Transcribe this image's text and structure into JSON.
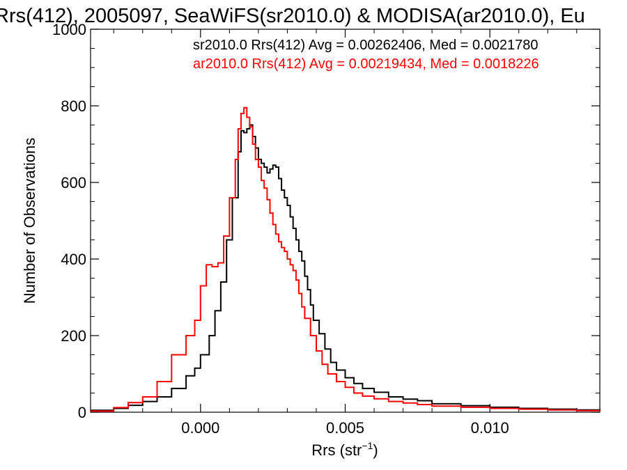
{
  "chart_data": {
    "type": "line",
    "title": "Rrs(412), 2005097, SeaWiFS(sr2010.0) & MODISA(ar2010.0), Eu",
    "xlabel_main": "Rrs (str",
    "xlabel_sup": "−1",
    "xlabel_close": ")",
    "ylabel": "Number of Observations",
    "xlim": [
      -0.0038,
      0.0138
    ],
    "ylim": [
      0,
      1000
    ],
    "grid": false,
    "legend_position": "top-right",
    "x_ticks": [
      {
        "value": 0.0,
        "label": "0.000"
      },
      {
        "value": 0.005,
        "label": "0.005"
      },
      {
        "value": 0.01,
        "label": "0.010"
      }
    ],
    "y_ticks": [
      {
        "value": 0,
        "label": "0"
      },
      {
        "value": 200,
        "label": "200"
      },
      {
        "value": 400,
        "label": "400"
      },
      {
        "value": 600,
        "label": "600"
      },
      {
        "value": 800,
        "label": "800"
      },
      {
        "value": 1000,
        "label": "1000"
      }
    ],
    "series": [
      {
        "legend": "sr2010.0 Rrs(412) Avg = 0.00262406, Med = 0.0021780",
        "color": "#000000",
        "points": [
          [
            -0.0038,
            5
          ],
          [
            -0.003,
            10
          ],
          [
            -0.0025,
            18
          ],
          [
            -0.002,
            28
          ],
          [
            -0.0015,
            40
          ],
          [
            -0.001,
            62
          ],
          [
            -0.0005,
            95
          ],
          [
            -0.0002,
            115
          ],
          [
            0.0,
            150
          ],
          [
            0.0003,
            200
          ],
          [
            0.0005,
            265
          ],
          [
            0.0007,
            340
          ],
          [
            0.0009,
            450
          ],
          [
            0.0011,
            560
          ],
          [
            0.0013,
            680
          ],
          [
            0.0014,
            735
          ],
          [
            0.0015,
            730
          ],
          [
            0.0016,
            740
          ],
          [
            0.0017,
            750
          ],
          [
            0.0018,
            720
          ],
          [
            0.0019,
            690
          ],
          [
            0.002,
            660
          ],
          [
            0.0021,
            650
          ],
          [
            0.0022,
            640
          ],
          [
            0.0023,
            625
          ],
          [
            0.0024,
            635
          ],
          [
            0.0025,
            645
          ],
          [
            0.0026,
            640
          ],
          [
            0.0027,
            610
          ],
          [
            0.0028,
            580
          ],
          [
            0.0029,
            560
          ],
          [
            0.003,
            540
          ],
          [
            0.0031,
            510
          ],
          [
            0.0032,
            480
          ],
          [
            0.0033,
            450
          ],
          [
            0.0034,
            420
          ],
          [
            0.0035,
            395
          ],
          [
            0.0036,
            355
          ],
          [
            0.0037,
            320
          ],
          [
            0.0038,
            280
          ],
          [
            0.0039,
            240
          ],
          [
            0.0041,
            205
          ],
          [
            0.0043,
            165
          ],
          [
            0.0045,
            130
          ],
          [
            0.0047,
            110
          ],
          [
            0.005,
            90
          ],
          [
            0.0053,
            75
          ],
          [
            0.0056,
            62
          ],
          [
            0.006,
            52
          ],
          [
            0.0065,
            40
          ],
          [
            0.007,
            34
          ],
          [
            0.0075,
            30
          ],
          [
            0.008,
            22
          ],
          [
            0.009,
            17
          ],
          [
            0.01,
            13
          ],
          [
            0.011,
            10
          ],
          [
            0.012,
            8
          ],
          [
            0.013,
            6
          ],
          [
            0.0138,
            5
          ]
        ]
      },
      {
        "legend": "ar2010.0 Rrs(412) Avg = 0.00219434, Med = 0.0018226",
        "color": "#ff0000",
        "points": [
          [
            -0.0038,
            3
          ],
          [
            -0.003,
            12
          ],
          [
            -0.0025,
            25
          ],
          [
            -0.002,
            40
          ],
          [
            -0.0015,
            80
          ],
          [
            -0.001,
            150
          ],
          [
            -0.0005,
            200
          ],
          [
            -0.0002,
            240
          ],
          [
            0.0,
            330
          ],
          [
            0.0002,
            385
          ],
          [
            0.0004,
            380
          ],
          [
            0.0006,
            390
          ],
          [
            0.0008,
            460
          ],
          [
            0.001,
            560
          ],
          [
            0.0012,
            660
          ],
          [
            0.0013,
            740
          ],
          [
            0.0014,
            780
          ],
          [
            0.0015,
            795
          ],
          [
            0.0016,
            770
          ],
          [
            0.0017,
            745
          ],
          [
            0.0018,
            700
          ],
          [
            0.0019,
            660
          ],
          [
            0.002,
            640
          ],
          [
            0.0021,
            605
          ],
          [
            0.0022,
            585
          ],
          [
            0.0023,
            555
          ],
          [
            0.0024,
            520
          ],
          [
            0.0025,
            490
          ],
          [
            0.0026,
            465
          ],
          [
            0.0027,
            445
          ],
          [
            0.0028,
            430
          ],
          [
            0.0029,
            420
          ],
          [
            0.003,
            400
          ],
          [
            0.0031,
            385
          ],
          [
            0.0032,
            370
          ],
          [
            0.0033,
            345
          ],
          [
            0.0034,
            310
          ],
          [
            0.0035,
            275
          ],
          [
            0.0036,
            245
          ],
          [
            0.0038,
            200
          ],
          [
            0.004,
            160
          ],
          [
            0.0042,
            125
          ],
          [
            0.0044,
            100
          ],
          [
            0.0047,
            80
          ],
          [
            0.005,
            65
          ],
          [
            0.0053,
            50
          ],
          [
            0.0056,
            42
          ],
          [
            0.006,
            35
          ],
          [
            0.0065,
            28
          ],
          [
            0.007,
            24
          ],
          [
            0.0075,
            20
          ],
          [
            0.008,
            16
          ],
          [
            0.009,
            13
          ],
          [
            0.01,
            10
          ],
          [
            0.011,
            8
          ],
          [
            0.012,
            6
          ],
          [
            0.013,
            4
          ],
          [
            0.0138,
            4
          ]
        ]
      }
    ]
  }
}
